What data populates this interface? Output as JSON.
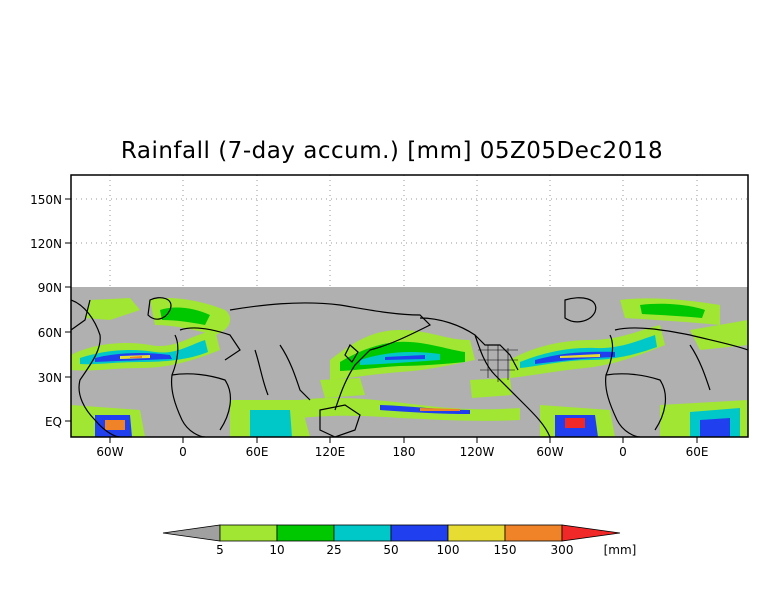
{
  "title": "Rainfall (7-day accum.) [mm] 05Z05Dec2018",
  "map": {
    "y_ticks": [
      "150N",
      "120N",
      "90N",
      "60N",
      "30N",
      "EQ"
    ],
    "x_ticks": [
      "60W",
      "0",
      "60E",
      "120E",
      "180",
      "120W",
      "60W",
      "0",
      "60E"
    ],
    "no_data_color": "#b0b0b0",
    "coastline_color": "#000000"
  },
  "colorbar": {
    "labels": [
      "5",
      "10",
      "25",
      "50",
      "100",
      "150",
      "300"
    ],
    "unit": "[mm]",
    "colors": [
      "#a0a0a0",
      "#a0e632",
      "#00c800",
      "#00c8c8",
      "#2040f0",
      "#e6dc32",
      "#f08228",
      "#f02828"
    ]
  }
}
